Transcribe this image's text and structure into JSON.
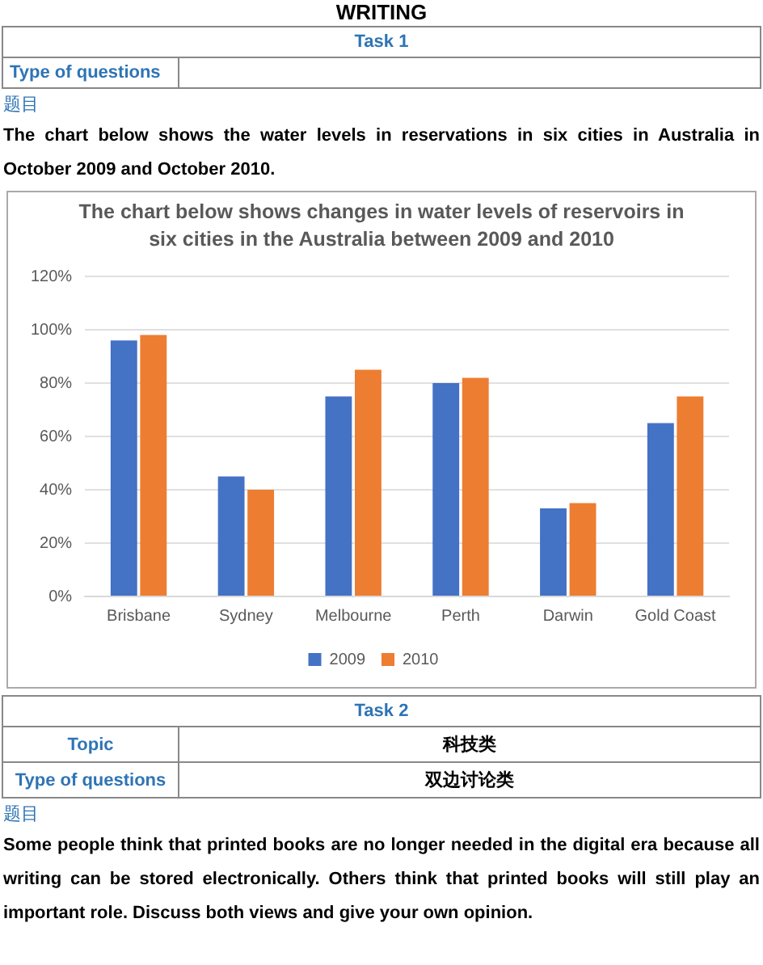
{
  "chart_data": {
    "type": "bar",
    "title": "The chart below shows changes in water levels of reservoirs in six cities in the Australia between 2009 and 2010",
    "categories": [
      "Brisbane",
      "Sydney",
      "Melbourne",
      "Perth",
      "Darwin",
      "Gold Coast"
    ],
    "series": [
      {
        "name": "2009",
        "color": "#4472c4",
        "values": [
          96,
          45,
          75,
          80,
          33,
          65
        ]
      },
      {
        "name": "2010",
        "color": "#ed7d31",
        "values": [
          98,
          40,
          85,
          82,
          35,
          75
        ]
      }
    ],
    "ylim": [
      0,
      120
    ],
    "yticks": [
      {
        "value": 0,
        "label": "0%"
      },
      {
        "value": 20,
        "label": "20%"
      },
      {
        "value": 40,
        "label": "40%"
      },
      {
        "value": 60,
        "label": "60%"
      },
      {
        "value": 80,
        "label": "80%"
      },
      {
        "value": 100,
        "label": "100%"
      },
      {
        "value": 120,
        "label": "120%"
      }
    ],
    "grid": "y",
    "legend": "bottom",
    "annotations": [
      "WRITING",
      "Task 1",
      "Type of questions",
      "题目",
      "The chart below shows the water levels in reservations in six cities in Australia in October 2009 and October 2010.",
      "Task 2",
      "Topic",
      "科技类",
      "Type of questions",
      "双边讨论类",
      "题目",
      "Some people think that printed books are no longer needed in the digital era because all writing can be stored electronically. Others think that printed books will still play an important role. Discuss both views and give your own opinion."
    ]
  }
}
